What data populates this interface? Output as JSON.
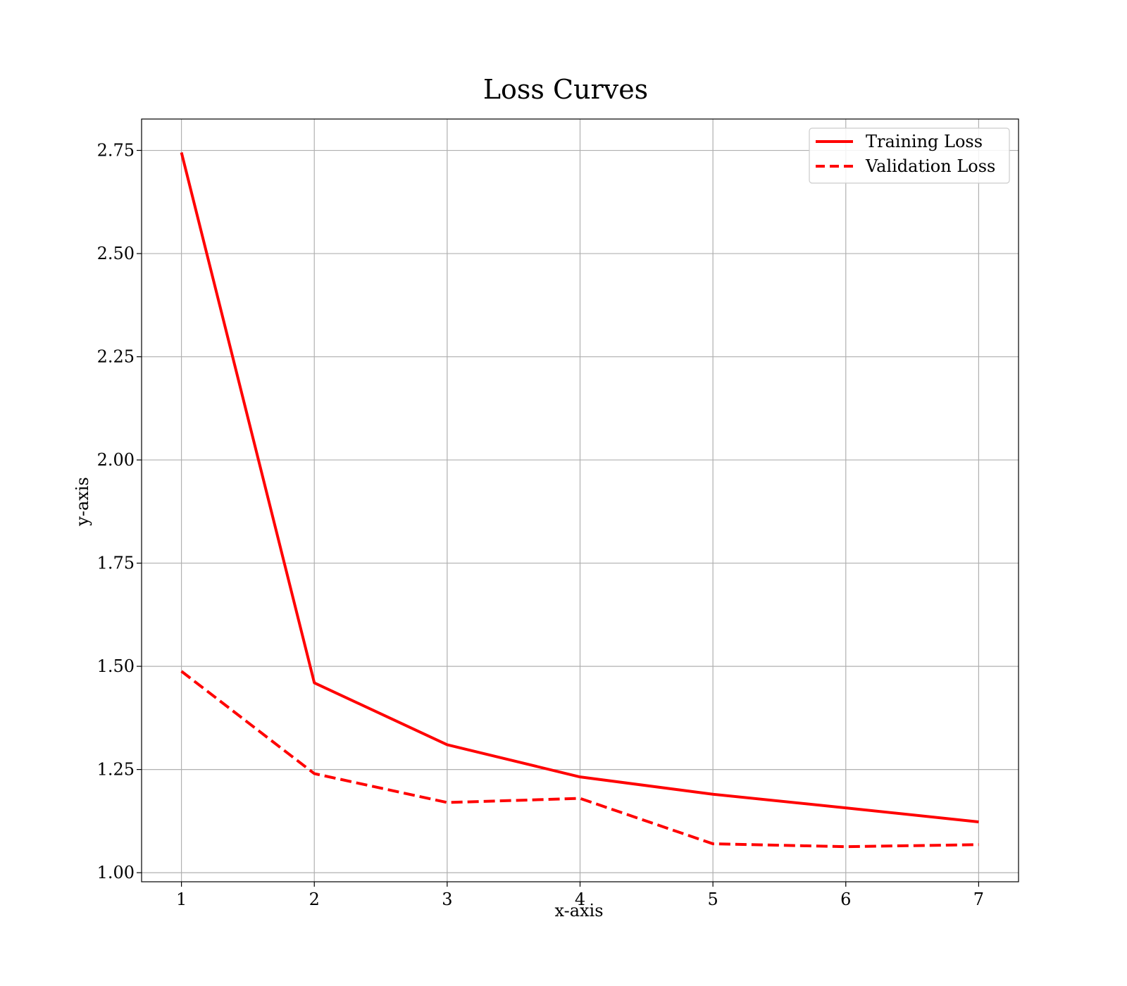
{
  "chart_data": {
    "type": "line",
    "title": "Loss Curves",
    "xlabel": "x-axis",
    "ylabel": "y-axis",
    "x": [
      1,
      2,
      3,
      4,
      5,
      6,
      7
    ],
    "xticks": [
      1,
      2,
      3,
      4,
      5,
      6,
      7
    ],
    "yticks": [
      "1.00",
      "1.25",
      "1.50",
      "1.75",
      "2.00",
      "2.25",
      "2.50",
      "2.75"
    ],
    "xlim": [
      0.7,
      7.3
    ],
    "ylim": [
      0.978,
      2.826
    ],
    "grid": true,
    "legend_position": "top-right",
    "series": [
      {
        "name": "Training Loss",
        "values": [
          2.745,
          1.46,
          1.31,
          1.232,
          1.19,
          1.157,
          1.123
        ],
        "color": "#ff0000",
        "linestyle": "solid"
      },
      {
        "name": "Validation Loss",
        "values": [
          1.488,
          1.24,
          1.17,
          1.18,
          1.07,
          1.063,
          1.068
        ],
        "color": "#ff0000",
        "linestyle": "dashed"
      }
    ]
  }
}
